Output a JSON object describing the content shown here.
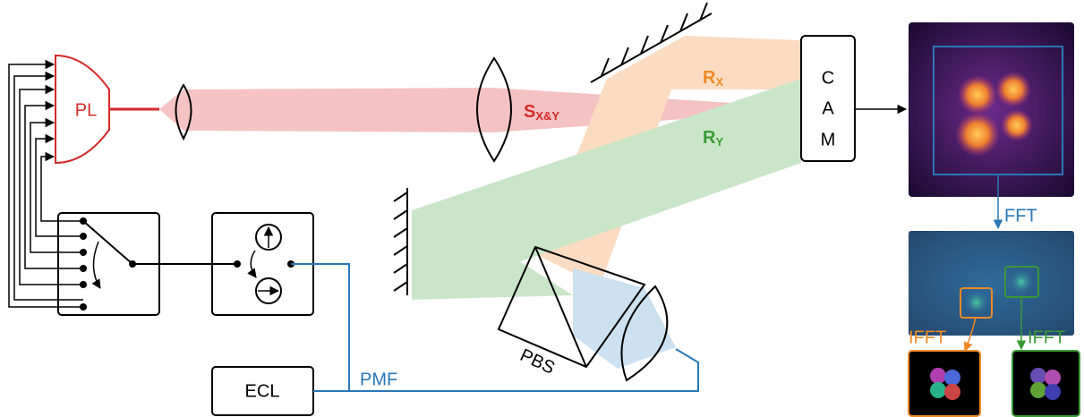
{
  "source": {
    "label": "PL"
  },
  "beams": [
    {
      "label": "S",
      "subscript": "X&Y"
    },
    {
      "label": "R",
      "subscript": "X"
    },
    {
      "label": "R",
      "subscript": "Y"
    }
  ],
  "camera": {
    "letters": [
      "C",
      "A",
      "M"
    ]
  },
  "laser": {
    "label": "ECL"
  },
  "fiber": {
    "label": "PMF"
  },
  "splitter": {
    "label": "PBS"
  },
  "processing": {
    "fft": "FFT",
    "ifft": [
      "IFFT",
      "IFFT"
    ]
  }
}
